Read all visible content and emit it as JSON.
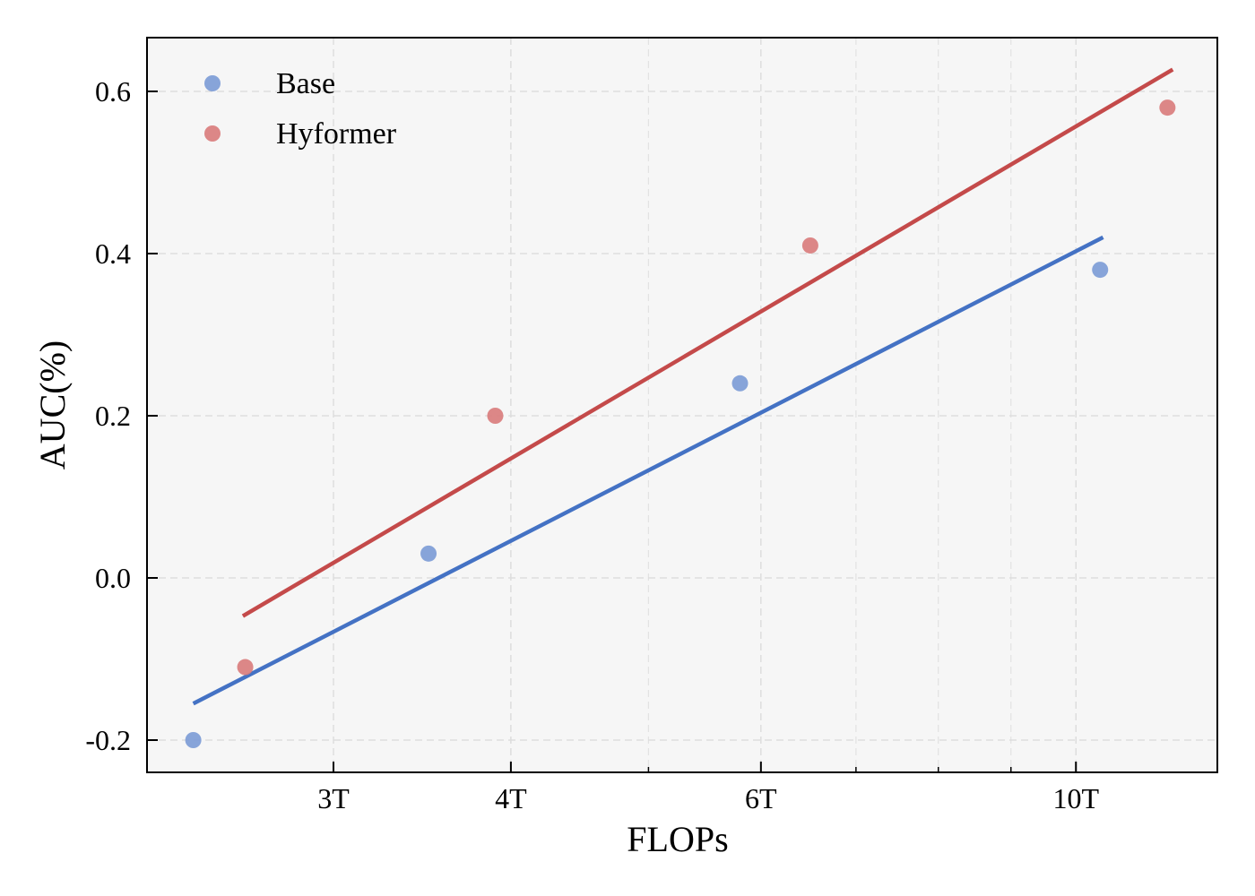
{
  "chart_data": {
    "type": "scatter",
    "title": "",
    "xlabel": "FLOPs",
    "ylabel": "AUC(%)",
    "xscale": "log",
    "x_ticks": [
      {
        "value": 3,
        "label": "3T"
      },
      {
        "value": 4,
        "label": "4T"
      },
      {
        "value": 6,
        "label": "6T"
      },
      {
        "value": 10,
        "label": "10T"
      }
    ],
    "x_minor_ticks": [
      5,
      7,
      8,
      9
    ],
    "y_ticks": [
      {
        "value": 0.6,
        "label": "0.6"
      },
      {
        "value": 0.4,
        "label": "0.4"
      },
      {
        "value": 0.2,
        "label": "0.2"
      },
      {
        "value": 0.0,
        "label": "0.0"
      },
      {
        "value": -0.2,
        "label": "-0.2"
      }
    ],
    "xlim": [
      2.2,
      13.5
    ],
    "ylim": [
      -0.24,
      0.665
    ],
    "grid": true,
    "legend_position": "upper left",
    "series": [
      {
        "name": "Base",
        "color": "#7b9bd6",
        "line_color": "#4472c4",
        "x": [
          2.39,
          3.5,
          5.8,
          10.4
        ],
        "y": [
          -0.2,
          0.03,
          0.24,
          0.38
        ],
        "fit_line": {
          "x": [
            2.39,
            10.45
          ],
          "y": [
            -0.155,
            0.42
          ]
        }
      },
      {
        "name": "Hyformer",
        "color": "#d97b7b",
        "line_color": "#c44a4a",
        "x": [
          2.6,
          3.9,
          6.5,
          11.6
        ],
        "y": [
          -0.11,
          0.2,
          0.41,
          0.58
        ],
        "fit_line": {
          "x": [
            2.59,
            11.7
          ],
          "y": [
            -0.047,
            0.627
          ]
        }
      }
    ]
  }
}
